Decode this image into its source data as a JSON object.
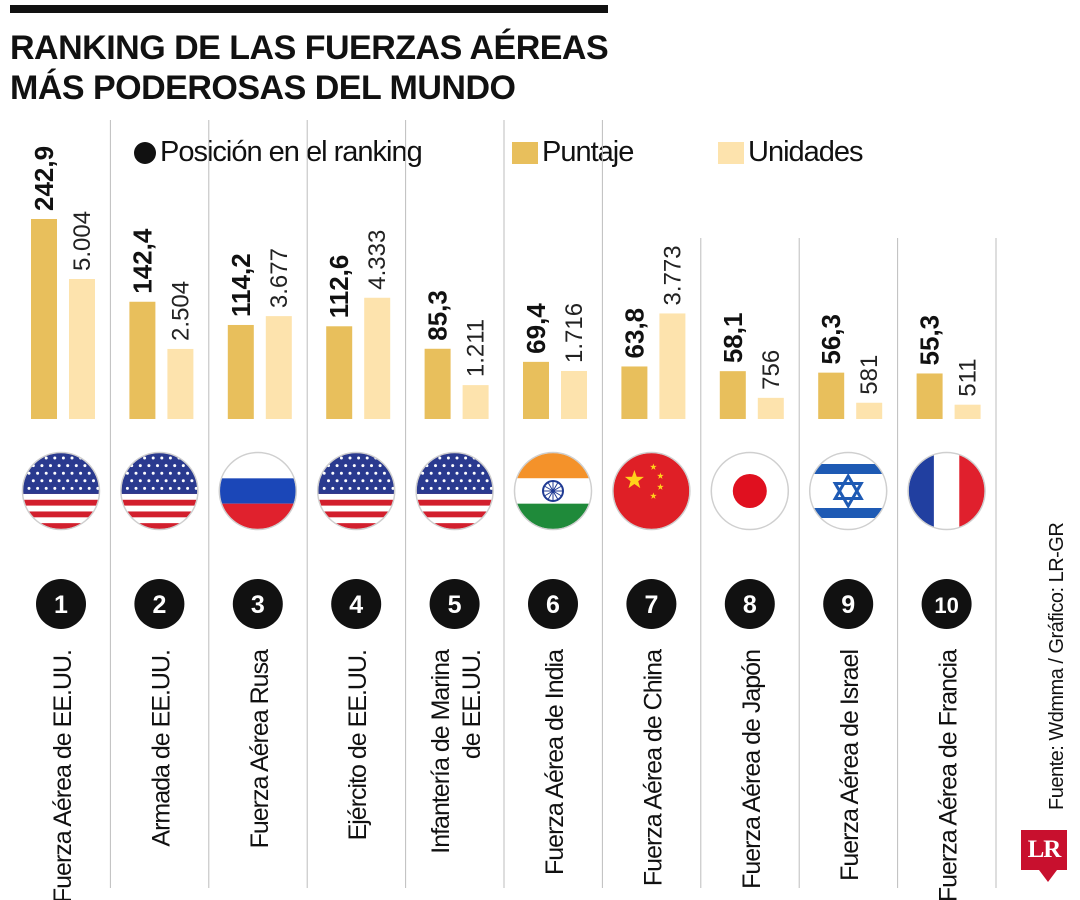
{
  "title": {
    "line1": "RANKING DE LAS FUERZAS AÉREAS",
    "line2": "MÁS PODEROSAS DEL MUNDO"
  },
  "legend": {
    "position_label": "Posición en el ranking",
    "score_label": "Puntaje",
    "units_label": "Unidades"
  },
  "colors": {
    "score": "#e8bf5c",
    "units": "#fde3ad",
    "rank_badge": "#111111",
    "divider": "#bdbdbd",
    "brand": "#c8102e"
  },
  "source": "Fuente: Wdmma / Gráfico: LR-GR",
  "logo_text": "LR",
  "chart_data": {
    "type": "bar",
    "title": "RANKING DE LAS FUERZAS AÉREAS MÁS PODEROSAS DEL MUNDO",
    "categories": [
      "Fuerza Aérea de EE.UU.",
      "Armada de EE.UU.",
      "Fuerza Aérea Rusa",
      "Ejército de EE.UU.",
      "Infantería de Marina de EE.UU.",
      "Fuerza Aérea de India",
      "Fuerza Aérea de China",
      "Fuerza Aérea de Japón",
      "Fuerza Aérea de Israel",
      "Fuerza Aérea de Francia"
    ],
    "label_lines": [
      [
        "Fuerza Aérea de EE.UU."
      ],
      [
        "Armada de EE.UU."
      ],
      [
        "Fuerza Aérea Rusa"
      ],
      [
        "Ejército de EE.UU."
      ],
      [
        "Infantería de Marina",
        "de EE.UU."
      ],
      [
        "Fuerza Aérea de India"
      ],
      [
        "Fuerza Aérea de China"
      ],
      [
        "Fuerza Aérea de Japón"
      ],
      [
        "Fuerza Aérea de Israel"
      ],
      [
        "Fuerza Aérea de Francia"
      ]
    ],
    "ranks": [
      "1",
      "2",
      "3",
      "4",
      "5",
      "6",
      "7",
      "8",
      "9",
      "10"
    ],
    "flags": [
      "usa",
      "usa",
      "russia",
      "usa",
      "usa",
      "india",
      "china",
      "japan",
      "israel",
      "france"
    ],
    "series": [
      {
        "name": "Puntaje",
        "values": [
          242.9,
          142.4,
          114.2,
          112.6,
          85.3,
          69.4,
          63.8,
          58.1,
          56.3,
          55.3
        ],
        "labels": [
          "242,9",
          "142,4",
          "114,2",
          "112,6",
          "85,3",
          "69,4",
          "63,8",
          "58,1",
          "56,3",
          "55,3"
        ]
      },
      {
        "name": "Unidades",
        "values": [
          5004,
          2504,
          3677,
          4333,
          1211,
          1716,
          3773,
          756,
          581,
          511
        ],
        "labels": [
          "5.004",
          "2.504",
          "3.677",
          "4.333",
          "1.211",
          "1.716",
          "3.773",
          "756",
          "581",
          "511"
        ]
      }
    ],
    "legend_position": "top",
    "grid": false
  }
}
